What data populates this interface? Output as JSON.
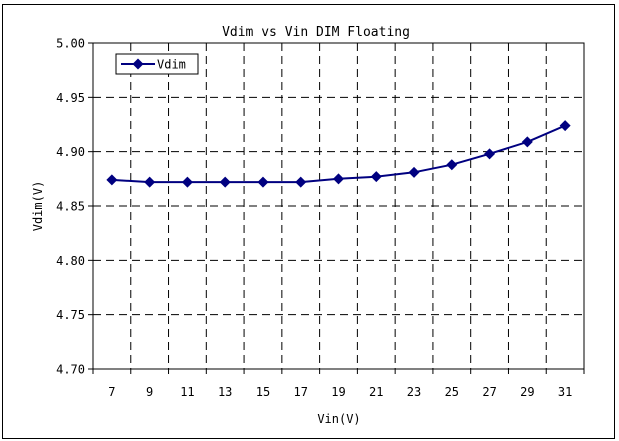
{
  "chart_data": {
    "type": "line",
    "title": "Vdim vs Vin DIM Floating",
    "xlabel": "Vin(V)",
    "ylabel": "Vdim(V)",
    "x": [
      7,
      9,
      11,
      13,
      15,
      17,
      19,
      21,
      23,
      25,
      27,
      29,
      31
    ],
    "x_tick_labels": [
      "7",
      "9",
      "11",
      "13",
      "15",
      "17",
      "19",
      "21",
      "23",
      "25",
      "27",
      "29",
      "31"
    ],
    "ylim": [
      4.7,
      5.0
    ],
    "y_ticks": [
      4.7,
      4.75,
      4.8,
      4.85,
      4.9,
      4.95,
      5.0
    ],
    "y_tick_labels": [
      "4.70",
      "4.75",
      "4.80",
      "4.85",
      "4.90",
      "4.95",
      "5.00"
    ],
    "grid": true,
    "legend_position": "top-left",
    "series": [
      {
        "name": "Vdim",
        "color": "#000080",
        "marker": "diamond",
        "values": [
          4.874,
          4.872,
          4.872,
          4.872,
          4.872,
          4.872,
          4.875,
          4.877,
          4.881,
          4.888,
          4.898,
          4.909,
          4.924
        ]
      }
    ]
  }
}
